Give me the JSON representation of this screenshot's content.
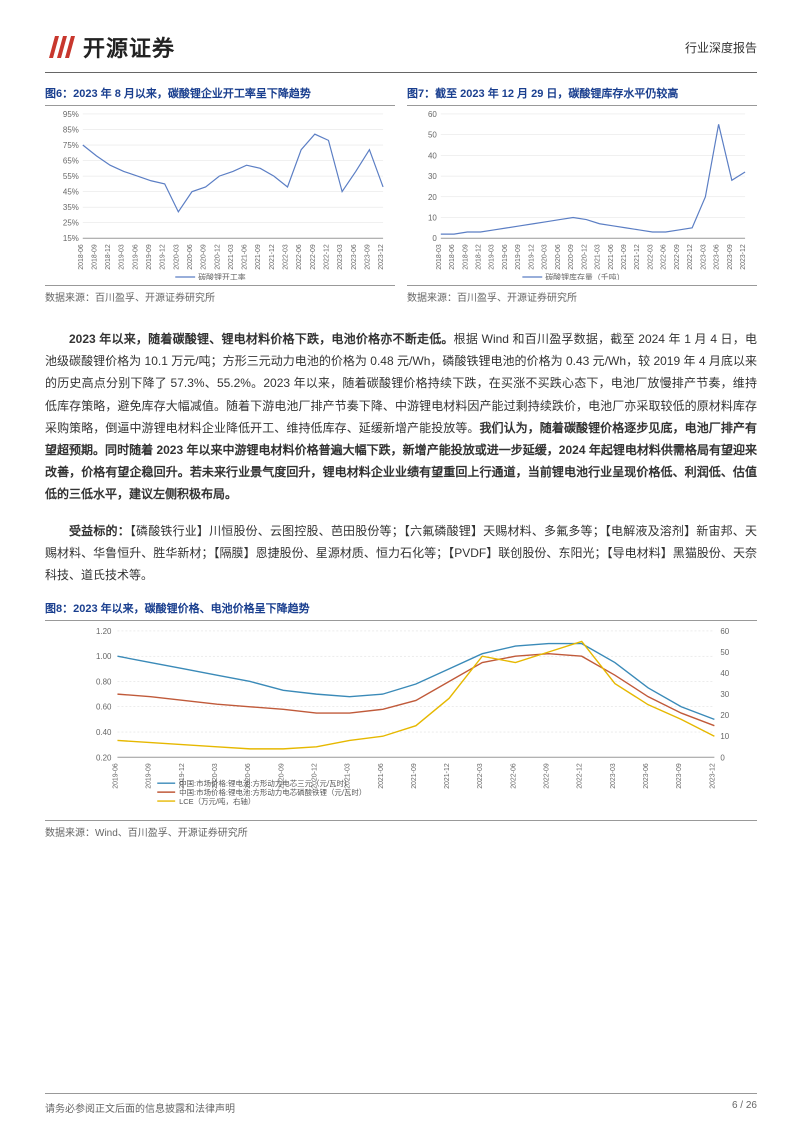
{
  "header": {
    "logo_text": "开源证券",
    "doc_type": "行业深度报告"
  },
  "chart6": {
    "title": "图6：2023 年 8 月以来，碳酸锂企业开工率呈下降趋势",
    "source": "数据来源：百川盈孚、开源证券研究所",
    "type": "line",
    "ylabel_fmt": "%",
    "ylim": [
      15,
      95
    ],
    "ytick_step": 10,
    "line_color": "#5b7ec4",
    "grid_color": "#e0e0e0",
    "axis_color": "#999999",
    "legend": "碳酸锂开工率",
    "x_labels": [
      "2018-06",
      "2018-09",
      "2018-12",
      "2019-03",
      "2019-06",
      "2019-09",
      "2019-12",
      "2020-03",
      "2020-06",
      "2020-09",
      "2020-12",
      "2021-03",
      "2021-06",
      "2021-09",
      "2021-12",
      "2022-03",
      "2022-06",
      "2022-09",
      "2022-12",
      "2023-03",
      "2023-06",
      "2023-09",
      "2023-12"
    ],
    "values": [
      75,
      68,
      62,
      58,
      55,
      52,
      50,
      32,
      45,
      48,
      55,
      58,
      62,
      60,
      55,
      48,
      72,
      82,
      78,
      45,
      58,
      72,
      48
    ]
  },
  "chart7": {
    "title": "图7：截至 2023 年 12 月 29 日，碳酸锂库存水平仍较高",
    "source": "数据来源：百川盈孚、开源证券研究所",
    "type": "line",
    "ylim": [
      0,
      60
    ],
    "ytick_step": 10,
    "line_color": "#5b7ec4",
    "grid_color": "#e0e0e0",
    "axis_color": "#999999",
    "legend": "碳酸锂库存量（千吨）",
    "x_labels": [
      "2018-03",
      "2018-06",
      "2018-09",
      "2018-12",
      "2019-03",
      "2019-06",
      "2019-09",
      "2019-12",
      "2020-03",
      "2020-06",
      "2020-09",
      "2020-12",
      "2021-03",
      "2021-06",
      "2021-09",
      "2021-12",
      "2022-03",
      "2022-06",
      "2022-09",
      "2022-12",
      "2023-03",
      "2023-06",
      "2023-09",
      "2023-12"
    ],
    "values": [
      2,
      2,
      3,
      3,
      4,
      5,
      6,
      7,
      8,
      9,
      10,
      9,
      7,
      6,
      5,
      4,
      3,
      3,
      4,
      5,
      20,
      55,
      28,
      32
    ]
  },
  "paragraph1": "2023 年以来，随着碳酸锂、锂电材料价格下跌，电池价格亦不断走低。根据 Wind 和百川盈孚数据，截至 2024 年 1 月 4 日，电池级碳酸锂价格为 10.1 万元/吨；方形三元动力电池的价格为 0.48 元/Wh，磷酸铁锂电池的价格为 0.43 元/Wh，较 2019 年 4 月底以来的历史高点分别下降了 57.3%、55.2%。2023 年以来，随着碳酸锂价格持续下跌，在买涨不买跌心态下，电池厂放慢排产节奏，维持低库存策略，避免库存大幅减值。随着下游电池厂排产节奏下降、中游锂电材料因产能过剩持续跌价，电池厂亦采取较低的原材料库存采购策略，倒逼中游锂电材料企业降低开工、维持低库存、延缓新增产能投放等。我们认为，随着碳酸锂价格逐步见底，电池厂排产有望超预期。同时随着 2023 年以来中游锂电材料价格普遍大幅下跌，新增产能投放或进一步延缓，2024 年起锂电材料供需格局有望迎来改善，价格有望企稳回升。若未来行业景气度回升，锂电材料企业业绩有望重回上行通道，当前锂电池行业呈现价格低、利润低、估值低的三低水平，建议左侧积极布局。",
  "targets_label": "受益标的：",
  "targets": "【磷酸铁行业】川恒股份、云图控股、芭田股份等；【六氟磷酸锂】天赐材料、多氟多等；【电解液及溶剂】新宙邦、天赐材料、华鲁恒升、胜华新材；【隔膜】恩捷股份、星源材质、恒力石化等；【PVDF】联创股份、东阳光；【导电材料】黑猫股份、天奈科技、道氏技术等。",
  "chart8": {
    "title": "图8：2023 年以来，碳酸锂价格、电池价格呈下降趋势",
    "source": "数据来源：Wind、百川盈孚、开源证券研究所",
    "type": "line",
    "ylim_left": [
      0.2,
      1.2
    ],
    "ytick_left": [
      0.2,
      0.4,
      0.6,
      0.8,
      1.0,
      1.2
    ],
    "ylim_right": [
      0,
      60
    ],
    "ytick_right": [
      0,
      10,
      20,
      30,
      40,
      50,
      60
    ],
    "grid_color": "#d8d8d8",
    "axis_color": "#999999",
    "x_labels": [
      "2019-06",
      "2019-09",
      "2019-12",
      "2020-03",
      "2020-06",
      "2020-09",
      "2020-12",
      "2021-03",
      "2021-06",
      "2021-09",
      "2021-12",
      "2022-03",
      "2022-06",
      "2022-09",
      "2022-12",
      "2023-03",
      "2023-06",
      "2023-09",
      "2023-12"
    ],
    "series": [
      {
        "name": "中国:市场价格:锂电池:方形动力电芯三元（元/瓦时）",
        "color": "#3a8ab8",
        "axis": "left",
        "values": [
          1.0,
          0.95,
          0.9,
          0.85,
          0.8,
          0.73,
          0.7,
          0.68,
          0.7,
          0.78,
          0.9,
          1.02,
          1.08,
          1.1,
          1.1,
          0.95,
          0.75,
          0.6,
          0.5
        ]
      },
      {
        "name": "中国:市场价格:锂电池:方形动力电芯磷酸铁锂（元/瓦时）",
        "color": "#c05a3a",
        "axis": "left",
        "values": [
          0.7,
          0.68,
          0.65,
          0.62,
          0.6,
          0.58,
          0.55,
          0.55,
          0.58,
          0.65,
          0.8,
          0.95,
          1.0,
          1.02,
          1.0,
          0.85,
          0.68,
          0.55,
          0.45
        ]
      },
      {
        "name": "LCE（万元/吨，右轴）",
        "color": "#e6b800",
        "axis": "right",
        "values": [
          8,
          7,
          6,
          5,
          4,
          4,
          5,
          8,
          10,
          15,
          28,
          48,
          45,
          50,
          55,
          35,
          25,
          18,
          10
        ]
      }
    ]
  },
  "footer": {
    "disclaimer": "请务必参阅正文后面的信息披露和法律声明",
    "page": "6 / 26"
  },
  "colors": {
    "title_blue": "#1a3f8f",
    "logo_red": "#c8372d"
  }
}
